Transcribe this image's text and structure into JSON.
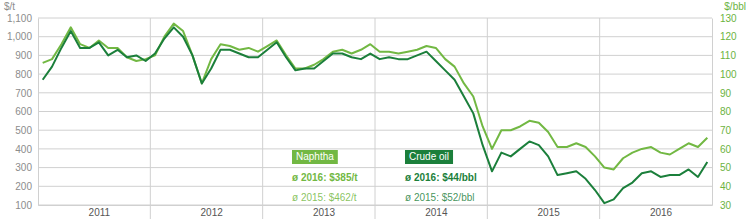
{
  "chart_data": {
    "type": "line",
    "categories": [
      null,
      null,
      null,
      null,
      null,
      null,
      "2011",
      null,
      null,
      null,
      null,
      null,
      null,
      null,
      null,
      null,
      null,
      null,
      "2012",
      null,
      null,
      null,
      null,
      null,
      null,
      null,
      null,
      null,
      null,
      null,
      "2013",
      null,
      null,
      null,
      null,
      null,
      null,
      null,
      null,
      null,
      null,
      null,
      "2014",
      null,
      null,
      null,
      null,
      null,
      null,
      null,
      null,
      null,
      null,
      null,
      "2015",
      null,
      null,
      null,
      null,
      null,
      null,
      null,
      null,
      null,
      null,
      null,
      "2016",
      null,
      null,
      null,
      null,
      null
    ],
    "series": [
      {
        "name": "Naphtha",
        "color": "#72b843",
        "values": [
          860,
          880,
          960,
          1050,
          960,
          940,
          980,
          940,
          940,
          890,
          870,
          880,
          900,
          1000,
          1070,
          1030,
          900,
          750,
          880,
          960,
          950,
          930,
          940,
          920,
          950,
          980,
          900,
          830,
          830,
          850,
          880,
          920,
          930,
          910,
          930,
          960,
          920,
          920,
          910,
          920,
          930,
          950,
          940,
          880,
          840,
          750,
          680,
          520,
          400,
          500,
          500,
          520,
          550,
          540,
          490,
          410,
          410,
          430,
          410,
          360,
          300,
          290,
          350,
          380,
          400,
          410,
          380,
          370,
          400,
          430,
          410,
          460
        ]
      },
      {
        "name": "Crude oil",
        "color": "#1b7f3b",
        "axis": "y2",
        "values": [
          97,
          104,
          114,
          123,
          114,
          114,
          117,
          110,
          113,
          109,
          110,
          107,
          111,
          119,
          125,
          120,
          110,
          95,
          103,
          113,
          113,
          111,
          109,
          109,
          113,
          117,
          109,
          102,
          103,
          103,
          107,
          111,
          111,
          109,
          108,
          111,
          108,
          109,
          108,
          108,
          110,
          112,
          107,
          102,
          97,
          88,
          79,
          62,
          48,
          58,
          56,
          60,
          64,
          62,
          56,
          46,
          47,
          48,
          44,
          38,
          31,
          33,
          39,
          42,
          47,
          48,
          45,
          46,
          46,
          49,
          45,
          53
        ]
      }
    ],
    "y_label": "$/t",
    "y2_label": "$/bbl",
    "ylim": [
      100,
      1100
    ],
    "yticks": [
      100,
      200,
      300,
      400,
      500,
      600,
      700,
      800,
      900,
      {
        "value": 1000,
        "label": "1,000"
      },
      {
        "value": 1100,
        "label": "1,100"
      }
    ],
    "y2lim": [
      30,
      130
    ],
    "y2ticks": [
      30,
      40,
      50,
      60,
      70,
      80,
      90,
      100,
      110,
      120,
      130
    ],
    "annotations": [
      "ø 2016: $385/t",
      "ø 2015: $462/t",
      "ø 2016: $44/bbl",
      "ø 2015: $52/bbl"
    ],
    "legend": "bottom",
    "grid": true
  }
}
